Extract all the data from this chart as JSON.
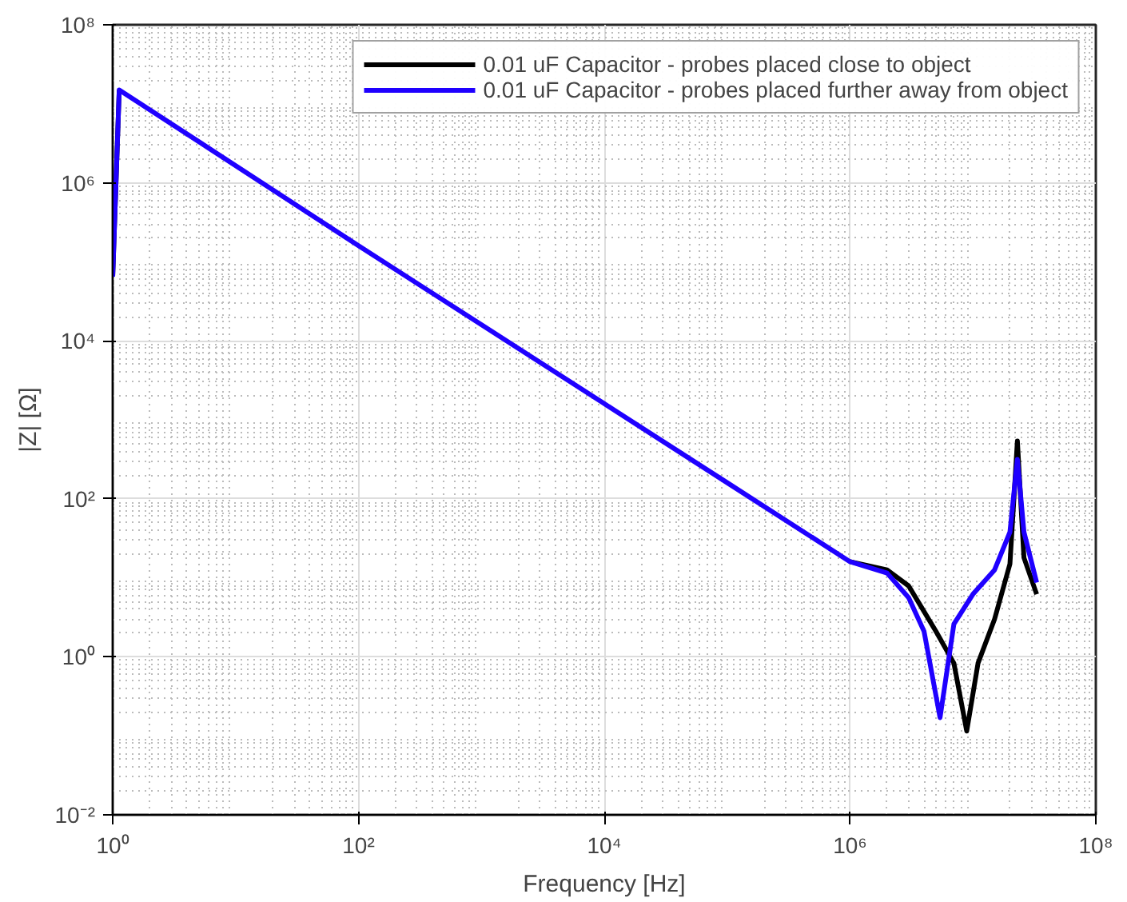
{
  "chart_data": {
    "type": "line",
    "xlabel": "Frequency [Hz]",
    "ylabel": "|Z| [Ω]",
    "log": "xy",
    "grid": true,
    "legend": "top right",
    "line_style": "solid",
    "marker": "none",
    "xlim": [
      1,
      100000000
    ],
    "ylim": [
      0.01,
      100000000
    ],
    "xticks": [
      {
        "value": 1,
        "label": "10⁰"
      },
      {
        "value": 100,
        "label": "10²"
      },
      {
        "value": 10000,
        "label": "10⁴"
      },
      {
        "value": 1000000,
        "label": "10⁶"
      },
      {
        "value": 100000000,
        "label": "10⁸"
      }
    ],
    "yticks": [
      {
        "value": 0.01,
        "label": "10⁻²"
      },
      {
        "value": 1,
        "label": "10⁰"
      },
      {
        "value": 100,
        "label": "10²"
      },
      {
        "value": 10000,
        "label": "10⁴"
      },
      {
        "value": 1000000,
        "label": "10⁶"
      },
      {
        "value": 100000000,
        "label": "10⁸"
      }
    ],
    "series": [
      {
        "name": "0.01 uF Capacitor - probes placed close to object",
        "color": "#000000",
        "x": [
          1,
          1.13,
          100,
          1000,
          10000,
          100000,
          1000000,
          2000000,
          3000000,
          5000000,
          7000000,
          8900000,
          11000000,
          15000000,
          20000000,
          23000000,
          26000000,
          33000000
        ],
        "values": [
          65000,
          15000000,
          null,
          null,
          null,
          null,
          16,
          12.6,
          7.9,
          2.1,
          0.83,
          0.115,
          0.83,
          3,
          15,
          540,
          18,
          6.2
        ]
      },
      {
        "name": "0.01 uF Capacitor - probes placed further away from object",
        "color": "#1f00ff",
        "x": [
          1,
          1.13,
          100,
          1000,
          10000,
          100000,
          1000000,
          2000000,
          3000000,
          4000000,
          5400000,
          7000000,
          10000000,
          15000000,
          20000000,
          23000000,
          26000000,
          33000000
        ],
        "values": [
          65000,
          15000000,
          160000,
          16000,
          1600,
          160,
          16,
          11.5,
          5.6,
          2.1,
          0.17,
          2.6,
          6.2,
          12.6,
          38,
          316,
          38,
          8.7
        ]
      }
    ]
  }
}
